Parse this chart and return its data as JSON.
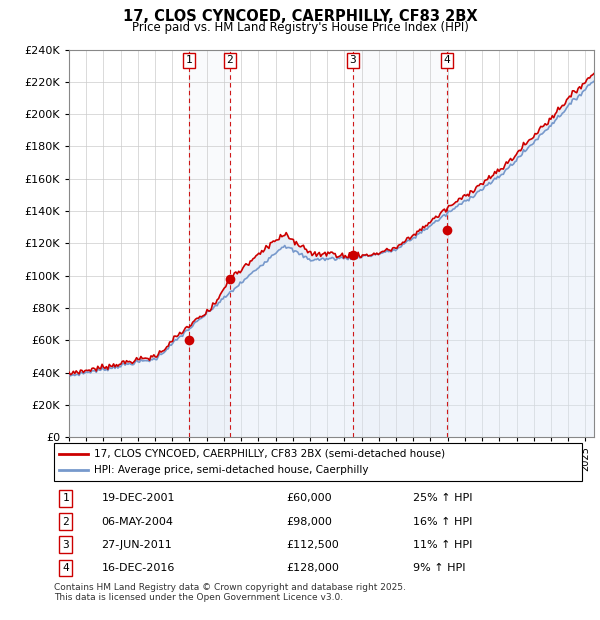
{
  "title": "17, CLOS CYNCOED, CAERPHILLY, CF83 2BX",
  "subtitle": "Price paid vs. HM Land Registry's House Price Index (HPI)",
  "xlim_start": 1995.0,
  "xlim_end": 2025.5,
  "ylim_min": 0,
  "ylim_max": 240000,
  "ytick_step": 20000,
  "sale_dates": [
    2001.97,
    2004.35,
    2011.49,
    2016.96
  ],
  "sale_prices": [
    60000,
    98000,
    112500,
    128000
  ],
  "sale_labels": [
    "1",
    "2",
    "3",
    "4"
  ],
  "sale_info": [
    {
      "label": "1",
      "date": "19-DEC-2001",
      "price": "£60,000",
      "pct": "25% ↑ HPI"
    },
    {
      "label": "2",
      "date": "06-MAY-2004",
      "price": "£98,000",
      "pct": "16% ↑ HPI"
    },
    {
      "label": "3",
      "date": "27-JUN-2011",
      "price": "£112,500",
      "pct": "11% ↑ HPI"
    },
    {
      "label": "4",
      "date": "16-DEC-2016",
      "price": "£128,000",
      "pct": "9% ↑ HPI"
    }
  ],
  "legend_property_label": "17, CLOS CYNCOED, CAERPHILLY, CF83 2BX (semi-detached house)",
  "legend_hpi_label": "HPI: Average price, semi-detached house, Caerphilly",
  "property_line_color": "#cc0000",
  "hpi_line_color": "#7799cc",
  "hpi_fill_color": "#dde8f5",
  "sale_marker_color": "#cc0000",
  "vline_color": "#cc0000",
  "footer_text": "Contains HM Land Registry data © Crown copyright and database right 2025.\nThis data is licensed under the Open Government Licence v3.0.",
  "background_color": "#ffffff",
  "grid_color": "#cccccc"
}
